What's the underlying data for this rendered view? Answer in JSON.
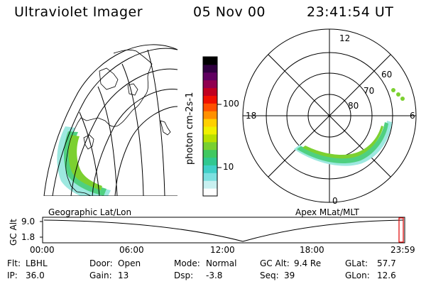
{
  "header": {
    "instrument": "Ultraviolet Imager",
    "date": "05 Nov 00",
    "time": "23:41:54 UT"
  },
  "colorbar": {
    "label": "photon cm-2s-1",
    "ticks": [
      {
        "label": "100",
        "value": 100
      },
      {
        "label": "10",
        "value": 10
      }
    ],
    "colors": [
      "#ffffff",
      "#c8f0f0",
      "#7ce0e0",
      "#40d0c8",
      "#30c890",
      "#40c860",
      "#78d030",
      "#b8e000",
      "#f0f000",
      "#ffd000",
      "#ff9000",
      "#ff5000",
      "#f01000",
      "#c00020",
      "#900050",
      "#600060",
      "#300040",
      "#000000"
    ]
  },
  "left_panel": {
    "caption": "Geographic Lat/Lon"
  },
  "right_panel": {
    "caption": "Apex MLat/MLT",
    "mlt_labels": {
      "top": "12",
      "left": "18",
      "right": "6",
      "bottom": "0"
    },
    "lat_labels": [
      "60",
      "70",
      "80"
    ]
  },
  "timeline": {
    "axis_title": "GC Alt",
    "y_labels": [
      "9.0",
      "1.8"
    ],
    "x_labels": [
      "00:00",
      "06:00",
      "12:00",
      "18:00",
      "23:59"
    ],
    "marker_color": "#e00000"
  },
  "status": {
    "row1": [
      {
        "key": "Flt:",
        "value": "LBHL"
      },
      {
        "key": "Door:",
        "value": "Open"
      },
      {
        "key": "Mode:",
        "value": "Normal"
      },
      {
        "key": "GC Alt:",
        "value": "9.4 Re"
      },
      {
        "key": "GLat:",
        "value": "57.7"
      }
    ],
    "row2": [
      {
        "key": "IP:",
        "value": "36.0"
      },
      {
        "key": "Gain:",
        "value": "13"
      },
      {
        "key": "Dsp:",
        "value": "-3.8"
      },
      {
        "key": "Seq:",
        "value": "39"
      },
      {
        "key": "GLon:",
        "value": "12.6"
      }
    ]
  }
}
